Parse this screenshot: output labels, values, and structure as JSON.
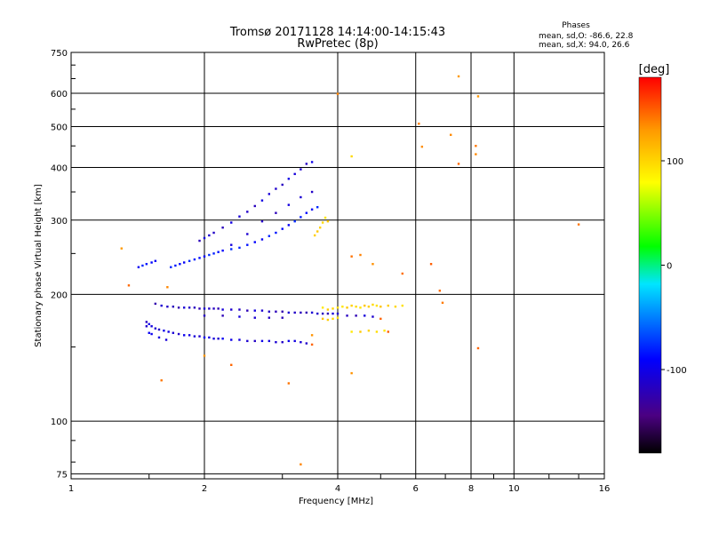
{
  "chart_data": {
    "type": "scatter",
    "title": "Tromsø 20171128 14:14:00-14:15:43",
    "subtitle": "RwPretec (8p)",
    "xlabel": "Frequency [MHz]",
    "ylabel": "Stationary phase Virtual Height [km]",
    "x_scale": "log",
    "y_scale": "log",
    "xlim": [
      1,
      16
    ],
    "ylim": [
      73,
      750
    ],
    "xticks": [
      "1",
      "2",
      "4",
      "6",
      "8",
      "10",
      "16"
    ],
    "yticks": [
      "75",
      "100",
      "200",
      "300",
      "400",
      "500",
      "600",
      "750"
    ],
    "grid": true,
    "phases": {
      "title": "Phases",
      "line1": "mean, sd,O: -86.6, 22.8",
      "line2": "mean, sd,X:  94.0, 26.6"
    },
    "colorbar": {
      "label": "[deg]",
      "range": [
        -180,
        180
      ],
      "ticks": [
        "100",
        "0",
        "-100"
      ]
    },
    "series": [
      {
        "trace": "lower-E-trace",
        "color_deg": -105,
        "points": [
          [
            1.48,
            172
          ],
          [
            1.5,
            170
          ],
          [
            1.52,
            168
          ],
          [
            1.55,
            166
          ],
          [
            1.58,
            165
          ],
          [
            1.62,
            164
          ],
          [
            1.66,
            163
          ],
          [
            1.7,
            162
          ],
          [
            1.75,
            161
          ],
          [
            1.8,
            160
          ],
          [
            1.85,
            160
          ],
          [
            1.9,
            159
          ],
          [
            1.95,
            159
          ],
          [
            2.0,
            158
          ],
          [
            2.05,
            158
          ],
          [
            2.1,
            157
          ],
          [
            2.15,
            157
          ],
          [
            2.2,
            157
          ],
          [
            2.3,
            156
          ],
          [
            2.4,
            156
          ],
          [
            2.5,
            155
          ],
          [
            2.6,
            155
          ],
          [
            2.7,
            155
          ],
          [
            2.8,
            155
          ],
          [
            2.9,
            154
          ],
          [
            3.0,
            154
          ],
          [
            3.1,
            155
          ],
          [
            3.2,
            155
          ],
          [
            3.3,
            154
          ],
          [
            3.4,
            153
          ],
          [
            1.52,
            161
          ],
          [
            1.58,
            158
          ],
          [
            1.64,
            156
          ],
          [
            1.48,
            168
          ],
          [
            1.5,
            162
          ]
        ]
      },
      {
        "trace": "upper-E-trace",
        "color_deg": -115,
        "points": [
          [
            1.55,
            190
          ],
          [
            1.6,
            188
          ],
          [
            1.65,
            187
          ],
          [
            1.7,
            187
          ],
          [
            1.75,
            186
          ],
          [
            1.8,
            186
          ],
          [
            1.85,
            186
          ],
          [
            1.9,
            186
          ],
          [
            1.95,
            185
          ],
          [
            2.0,
            185
          ],
          [
            2.05,
            185
          ],
          [
            2.1,
            185
          ],
          [
            2.15,
            185
          ],
          [
            2.2,
            184
          ],
          [
            2.3,
            184
          ],
          [
            2.4,
            184
          ],
          [
            2.5,
            183
          ],
          [
            2.6,
            183
          ],
          [
            2.7,
            183
          ],
          [
            2.8,
            182
          ],
          [
            2.9,
            182
          ],
          [
            3.0,
            182
          ],
          [
            3.1,
            181
          ],
          [
            3.2,
            181
          ],
          [
            3.3,
            181
          ],
          [
            3.4,
            181
          ],
          [
            3.5,
            181
          ],
          [
            3.6,
            180
          ],
          [
            3.7,
            180
          ],
          [
            3.8,
            180
          ],
          [
            3.9,
            180
          ],
          [
            4.0,
            180
          ],
          [
            4.2,
            178
          ],
          [
            4.4,
            178
          ],
          [
            4.6,
            178
          ],
          [
            4.8,
            177
          ],
          [
            2.0,
            178
          ],
          [
            2.2,
            178
          ],
          [
            2.4,
            177
          ],
          [
            2.6,
            176
          ],
          [
            2.8,
            176
          ],
          [
            3.0,
            176
          ]
        ]
      },
      {
        "trace": "F-trace-o",
        "color_deg": -85,
        "points": [
          [
            1.42,
            232
          ],
          [
            1.45,
            234
          ],
          [
            1.48,
            236
          ],
          [
            1.52,
            238
          ],
          [
            1.55,
            240
          ],
          [
            1.68,
            232
          ],
          [
            1.72,
            234
          ],
          [
            1.76,
            236
          ],
          [
            1.8,
            238
          ],
          [
            1.85,
            240
          ],
          [
            1.9,
            242
          ],
          [
            1.95,
            244
          ],
          [
            2.0,
            246
          ],
          [
            2.05,
            248
          ],
          [
            2.1,
            250
          ],
          [
            2.15,
            252
          ],
          [
            2.2,
            254
          ],
          [
            2.3,
            256
          ],
          [
            2.4,
            258
          ],
          [
            2.5,
            262
          ],
          [
            2.6,
            266
          ],
          [
            2.7,
            270
          ],
          [
            2.8,
            275
          ],
          [
            2.9,
            280
          ],
          [
            3.0,
            286
          ],
          [
            3.1,
            292
          ],
          [
            3.2,
            298
          ],
          [
            3.3,
            305
          ],
          [
            3.4,
            312
          ],
          [
            3.5,
            318
          ],
          [
            3.6,
            322
          ]
        ]
      },
      {
        "trace": "F-trace-x",
        "color_deg": -110,
        "points": [
          [
            1.95,
            268
          ],
          [
            2.0,
            272
          ],
          [
            2.05,
            276
          ],
          [
            2.1,
            280
          ],
          [
            2.2,
            288
          ],
          [
            2.3,
            296
          ],
          [
            2.4,
            306
          ],
          [
            2.5,
            314
          ],
          [
            2.6,
            324
          ],
          [
            2.7,
            334
          ],
          [
            2.8,
            346
          ],
          [
            2.9,
            356
          ],
          [
            3.0,
            364
          ],
          [
            3.1,
            376
          ],
          [
            3.2,
            386
          ],
          [
            3.3,
            396
          ],
          [
            3.4,
            408
          ],
          [
            3.5,
            412
          ],
          [
            2.3,
            262
          ],
          [
            2.5,
            278
          ],
          [
            2.7,
            298
          ],
          [
            2.9,
            312
          ],
          [
            3.1,
            326
          ],
          [
            3.3,
            340
          ],
          [
            3.5,
            350
          ]
        ]
      },
      {
        "trace": "X-mode-returns",
        "color_deg": 100,
        "points": [
          [
            3.7,
            186
          ],
          [
            3.8,
            184
          ],
          [
            3.9,
            185
          ],
          [
            4.0,
            186
          ],
          [
            4.1,
            187
          ],
          [
            4.2,
            186
          ],
          [
            4.3,
            188
          ],
          [
            4.4,
            187
          ],
          [
            4.5,
            186
          ],
          [
            4.6,
            188
          ],
          [
            4.7,
            187
          ],
          [
            4.8,
            189
          ],
          [
            4.9,
            188
          ],
          [
            5.0,
            187
          ],
          [
            5.2,
            188
          ],
          [
            5.4,
            187
          ],
          [
            5.6,
            188
          ],
          [
            3.7,
            175
          ],
          [
            3.8,
            174
          ],
          [
            3.9,
            175
          ],
          [
            4.0,
            176
          ],
          [
            4.3,
            163
          ],
          [
            4.5,
            163
          ],
          [
            4.7,
            164
          ],
          [
            4.9,
            163
          ],
          [
            5.1,
            164
          ],
          [
            3.6,
            282
          ],
          [
            3.65,
            288
          ],
          [
            3.7,
            296
          ],
          [
            3.75,
            304
          ],
          [
            3.8,
            298
          ],
          [
            3.55,
            276
          ],
          [
            4.3,
            425
          ]
        ]
      },
      {
        "trace": "scattered-returns",
        "color_deg": 140,
        "points": [
          [
            1.3,
            257
          ],
          [
            1.35,
            210
          ],
          [
            1.6,
            125
          ],
          [
            1.65,
            208
          ],
          [
            2.0,
            143
          ],
          [
            2.3,
            136
          ],
          [
            3.1,
            123
          ],
          [
            3.3,
            79
          ],
          [
            3.5,
            160
          ],
          [
            3.5,
            152
          ],
          [
            4.3,
            246
          ],
          [
            4.5,
            248
          ],
          [
            4.8,
            236
          ],
          [
            5.2,
            163
          ],
          [
            5.6,
            224
          ],
          [
            6.1,
            508
          ],
          [
            6.2,
            448
          ],
          [
            6.5,
            236
          ],
          [
            6.8,
            204
          ],
          [
            6.9,
            191
          ],
          [
            7.2,
            478
          ],
          [
            7.5,
            658
          ],
          [
            7.5,
            408
          ],
          [
            8.2,
            450
          ],
          [
            8.2,
            430
          ],
          [
            8.3,
            590
          ],
          [
            8.3,
            149
          ],
          [
            14.0,
            293
          ],
          [
            4.0,
            598
          ],
          [
            4.3,
            130
          ],
          [
            5.0,
            175
          ]
        ]
      }
    ]
  }
}
